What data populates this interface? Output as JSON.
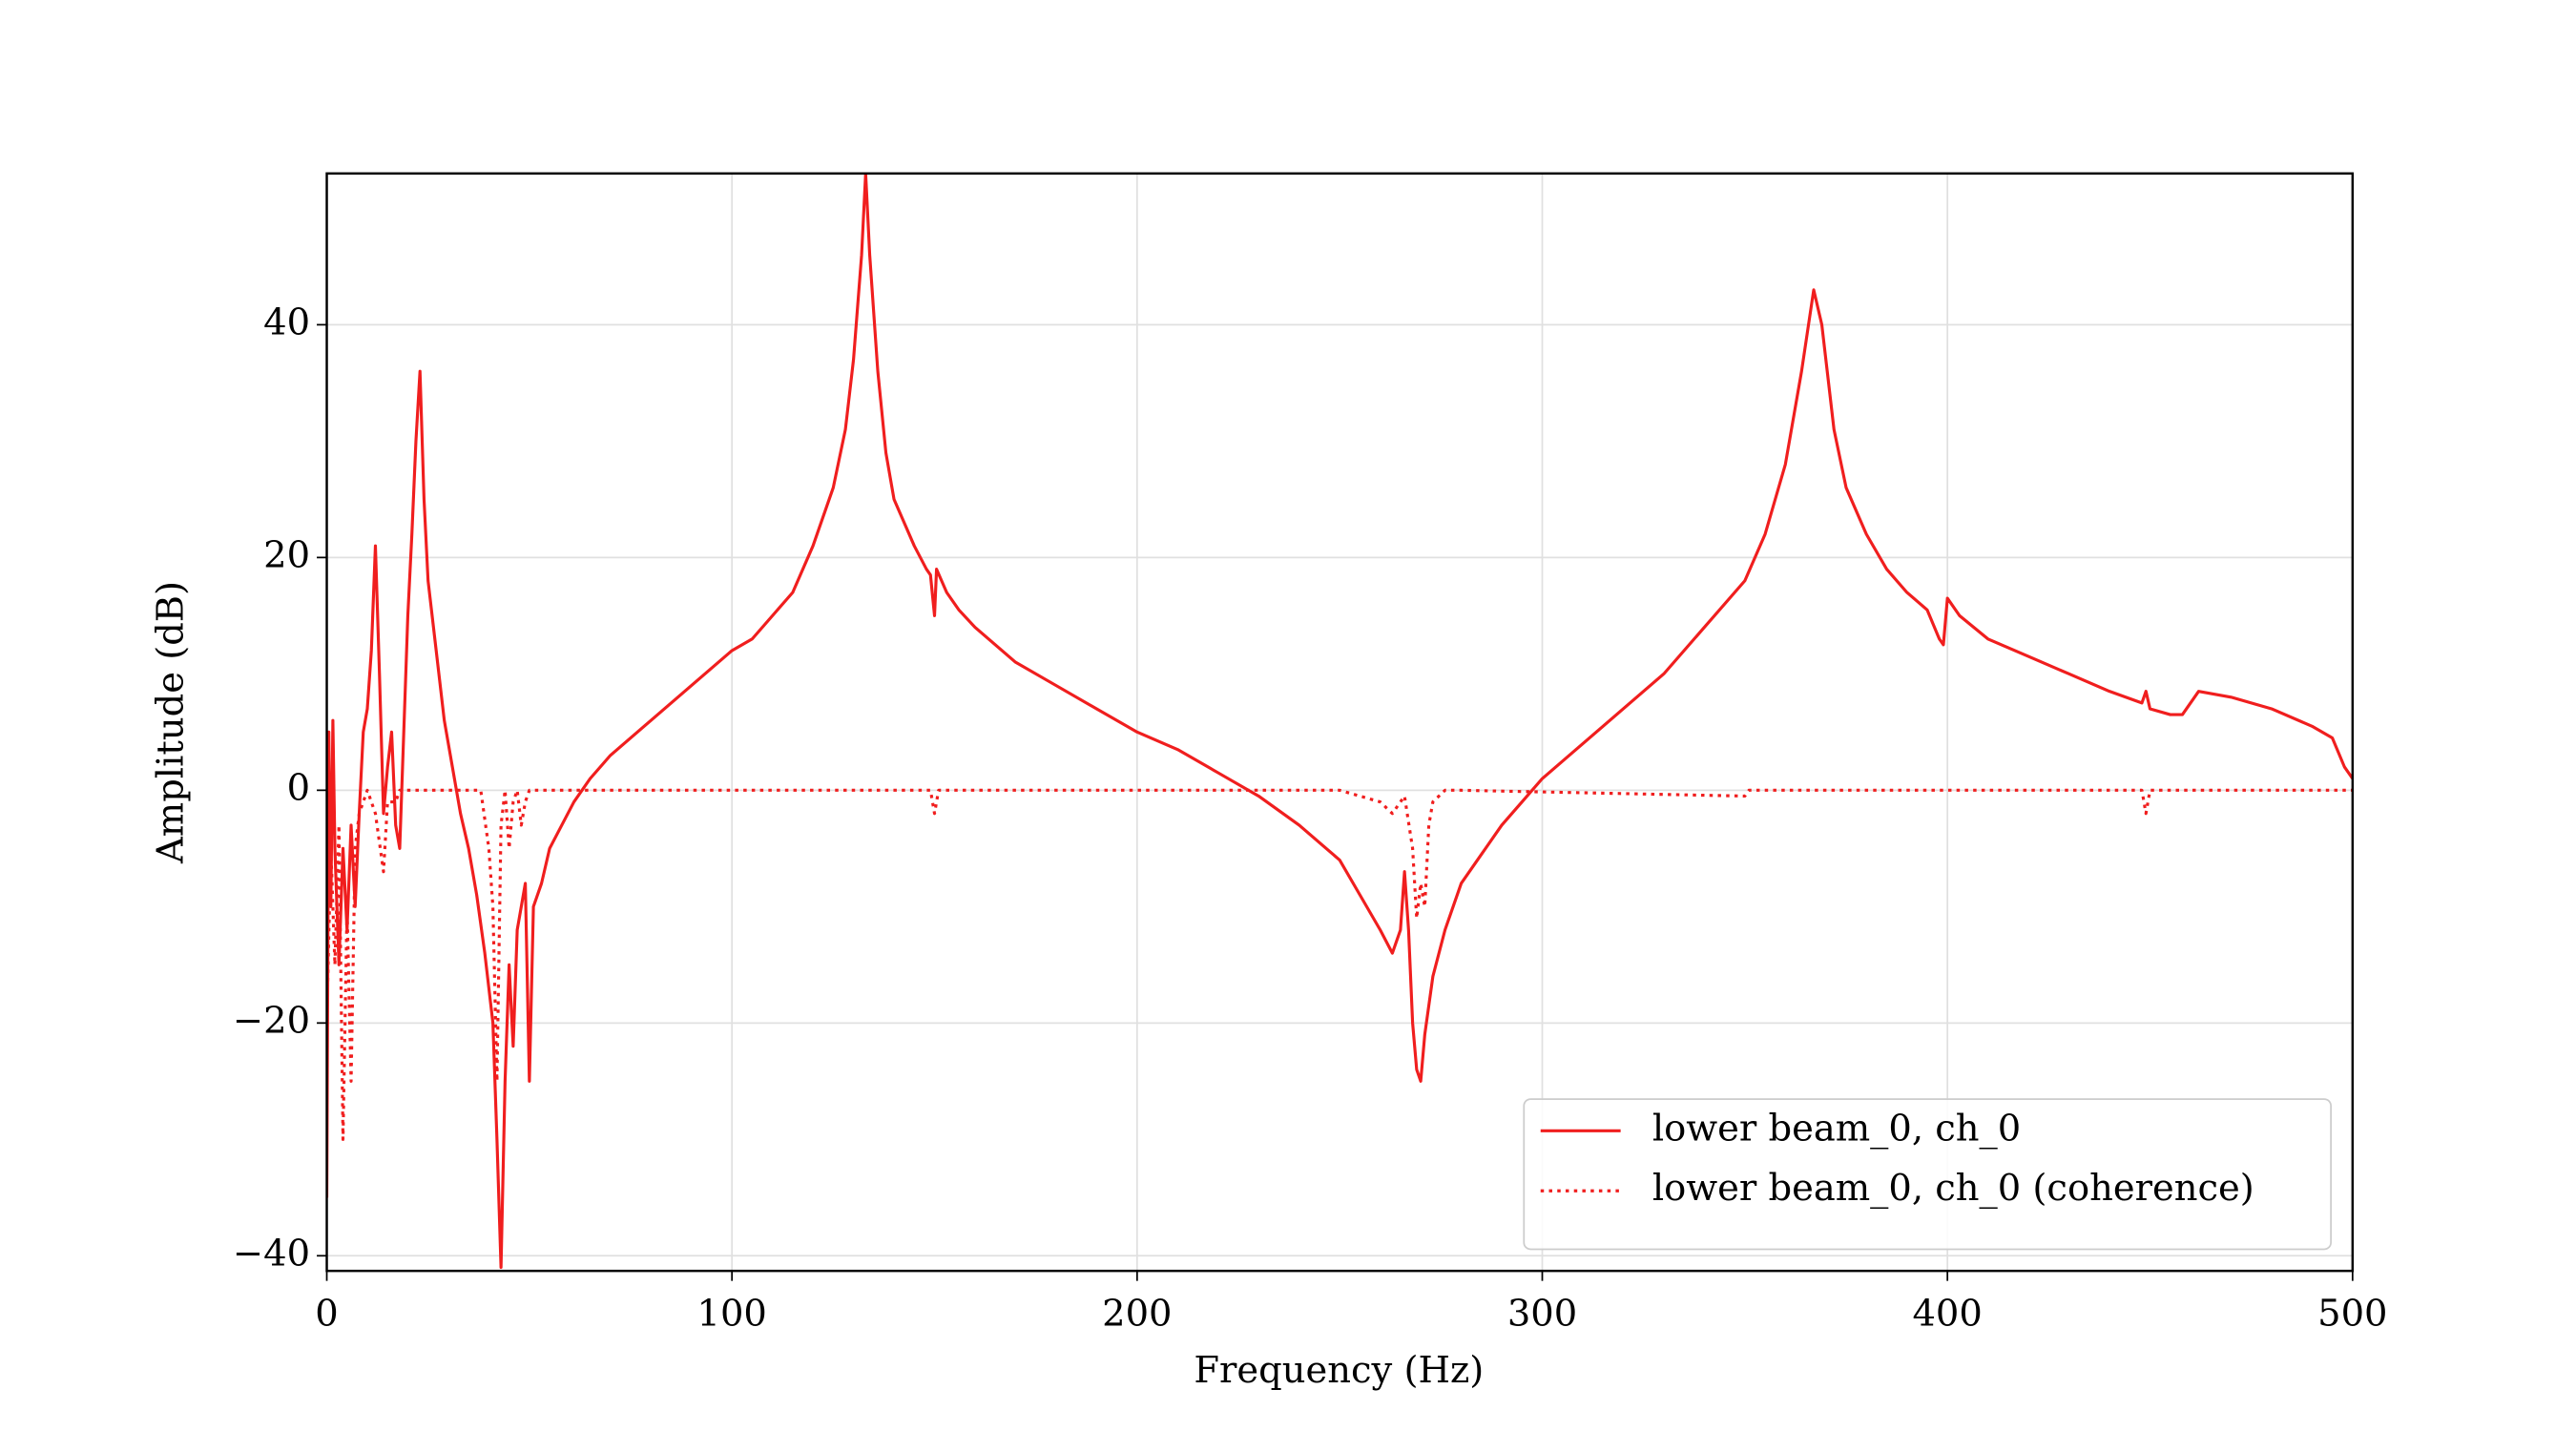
{
  "chart_data": {
    "type": "line",
    "xlabel": "Frequency (Hz)",
    "ylabel": "Amplitude (dB)",
    "xlim": [
      0,
      500
    ],
    "ylim": [
      -41.3,
      53
    ],
    "xticks": [
      0,
      100,
      200,
      300,
      400,
      500
    ],
    "yticks": [
      {
        "value": -40,
        "label": "−40"
      },
      {
        "value": -20,
        "label": "−20"
      },
      0,
      20,
      40
    ],
    "grid": true,
    "legend": "lower right",
    "series": [
      {
        "name": "lower beam_0, ch_0",
        "color": "#f01e1e",
        "linestyle": "solid",
        "x": [
          0,
          0.5,
          1,
          1.5,
          2,
          3,
          4,
          5,
          6,
          7,
          8,
          9,
          10,
          11,
          12,
          13,
          14,
          15,
          16,
          17,
          18,
          19,
          20,
          21,
          22,
          23,
          24,
          25,
          27,
          29,
          31,
          33,
          35,
          37,
          39,
          41,
          42,
          43,
          44,
          45,
          46,
          47,
          48,
          49,
          50,
          51,
          53,
          55,
          58,
          61,
          65,
          70,
          80,
          90,
          100,
          105,
          110,
          115,
          120,
          125,
          128,
          130,
          132,
          133,
          134,
          136,
          138,
          140,
          145,
          148,
          149,
          150,
          150.5,
          153,
          156,
          160,
          170,
          180,
          190,
          200,
          210,
          220,
          230,
          240,
          250,
          255,
          260,
          263,
          265,
          266,
          267,
          268,
          269,
          270,
          271,
          273,
          276,
          280,
          285,
          290,
          295,
          300,
          310,
          320,
          330,
          340,
          350,
          355,
          360,
          364,
          367,
          369,
          372,
          375,
          380,
          385,
          390,
          395,
          398,
          399,
          400,
          403,
          410,
          420,
          430,
          440,
          448,
          449,
          450,
          455,
          458,
          462,
          470,
          480,
          490,
          495,
          498,
          500
        ],
        "values": [
          -35,
          5,
          -10,
          6,
          -5,
          -15,
          -5,
          -12,
          -3,
          -10,
          -2,
          5,
          7,
          12,
          21,
          10,
          -2,
          2,
          5,
          -3,
          -5,
          5,
          15,
          22,
          30,
          36,
          25,
          18,
          12,
          6,
          2,
          -2,
          -5,
          -9,
          -14,
          -20,
          -30,
          -41,
          -25,
          -15,
          -22,
          -12,
          -10,
          -8,
          -25,
          -10,
          -8,
          -5,
          -3,
          -1,
          1,
          3,
          6,
          9,
          12,
          13,
          15,
          17,
          21,
          26,
          31,
          37,
          46,
          53,
          46,
          36,
          29,
          25,
          21,
          19,
          18.5,
          15,
          19,
          17,
          15.5,
          14,
          11,
          9,
          7,
          5,
          3.5,
          1.5,
          -0.5,
          -3,
          -6,
          -9,
          -12,
          -14,
          -12,
          -7,
          -12,
          -20,
          -24,
          -25,
          -21,
          -16,
          -12,
          -8,
          -5.5,
          -3,
          -1,
          1,
          4,
          7,
          10,
          14,
          18,
          22,
          28,
          36,
          43,
          40,
          31,
          26,
          22,
          19,
          17,
          15.5,
          13,
          12.5,
          16.5,
          15,
          13,
          11.5,
          10,
          8.5,
          7.5,
          8.5,
          7,
          6.5,
          6.5,
          8.5,
          8,
          7,
          5.5,
          4.5,
          2,
          1
        ]
      },
      {
        "name": "lower beam_0, ch_0 (coherence)",
        "color": "#f01e1e",
        "linestyle": "dotted",
        "x": [
          0,
          1,
          2,
          3,
          4,
          5,
          6,
          7,
          8,
          10,
          12,
          14,
          15,
          17,
          18,
          20,
          30,
          38,
          40,
          41,
          42,
          43,
          44,
          45,
          46,
          47,
          48,
          49,
          50,
          55,
          149,
          150,
          151,
          250,
          260,
          263,
          265,
          266,
          268,
          269,
          270,
          271,
          272,
          273,
          276,
          280,
          350,
          351,
          448,
          449,
          450,
          500
        ],
        "values": [
          -20,
          -5,
          -15,
          -3,
          -30,
          -10,
          -25,
          -5,
          -2,
          0,
          -2,
          -7,
          -1,
          -1,
          0,
          0,
          0,
          0,
          -5,
          -10,
          -25,
          -3,
          0,
          -5,
          -1,
          0,
          -3,
          -1,
          0,
          0,
          0,
          -2,
          0,
          0,
          -1,
          -2,
          -1,
          -0.5,
          -5,
          -11,
          -8,
          -10,
          -3,
          -1,
          0,
          0,
          -0.5,
          0,
          0,
          -2,
          0,
          0
        ]
      }
    ]
  }
}
